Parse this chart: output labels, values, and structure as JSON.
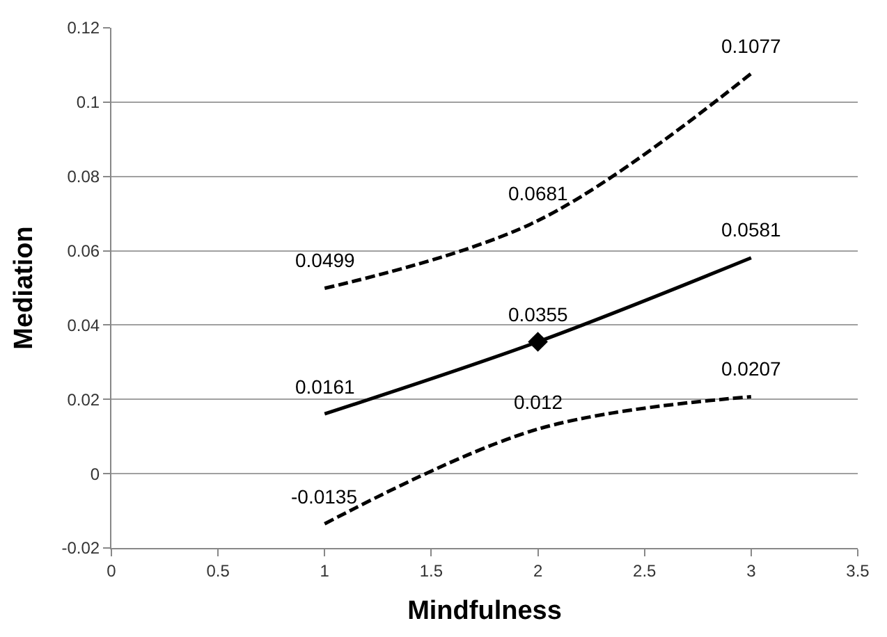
{
  "chart_data": {
    "type": "line",
    "xlabel": "Mindfulness",
    "ylabel": "Mediation",
    "x": [
      1,
      2,
      3
    ],
    "series": [
      {
        "color": "#000000",
        "values": [
          0.0499,
          0.0681,
          0.1077
        ],
        "line_style": "dashed"
      },
      {
        "color": "#000000",
        "values": [
          0.0161,
          0.0355,
          0.0581
        ],
        "line_style": "solid"
      },
      {
        "color": "#000000",
        "values": [
          -0.0135,
          0.012,
          0.0207
        ],
        "line_style": "dashed"
      },
      {
        "type": "scatter",
        "color": "#000000",
        "x": [
          2
        ],
        "values": [
          0.0355
        ],
        "marker": "diamond",
        "data_labels": false
      }
    ],
    "data_labels": true,
    "marker": "none",
    "grid": "y",
    "xlim": [
      0,
      3.5
    ],
    "xticks": [
      0,
      0.5,
      1,
      1.5,
      2,
      2.5,
      3,
      3.5
    ],
    "ylim": [
      -0.02,
      0.12
    ],
    "yticks": [
      -0.02,
      0,
      0.02,
      0.04,
      0.06,
      0.08,
      0.1,
      0.12
    ]
  }
}
